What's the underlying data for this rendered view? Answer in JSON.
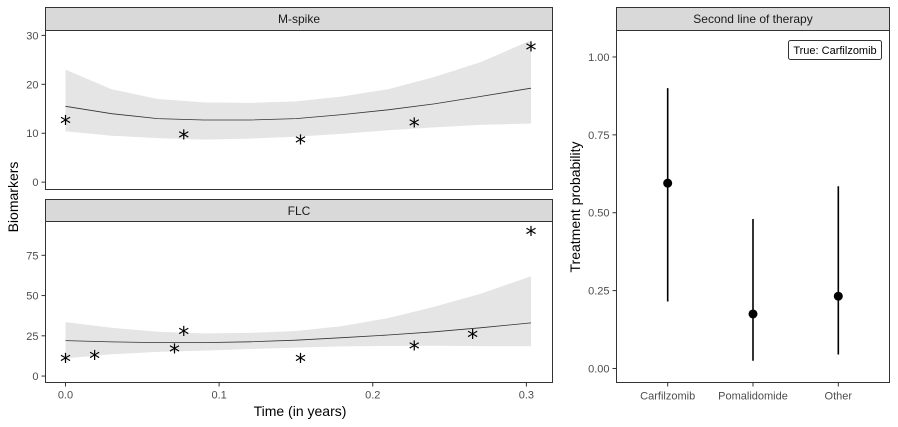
{
  "chart_data": [
    {
      "type": "line",
      "title": "M-spike",
      "xlabel": "Time (in years)",
      "ylabel": "Biomarkers",
      "xlim": [
        -0.013,
        0.317
      ],
      "ylim": [
        -1.5,
        31
      ],
      "xticks": [
        0,
        0.1,
        0.2,
        0.3
      ],
      "yticks": [
        0,
        10,
        20,
        30
      ],
      "fit": {
        "x": [
          0.0,
          0.03,
          0.06,
          0.09,
          0.12,
          0.15,
          0.18,
          0.21,
          0.24,
          0.27,
          0.303
        ],
        "y": [
          15.5,
          14.0,
          13.0,
          12.7,
          12.7,
          13.0,
          13.8,
          14.8,
          16.0,
          17.5,
          19.2
        ],
        "lower": [
          10.4,
          9.5,
          9.0,
          8.7,
          8.9,
          9.3,
          9.9,
          10.6,
          11.2,
          11.7,
          12.0
        ],
        "upper": [
          23.0,
          19.0,
          17.0,
          16.3,
          16.2,
          16.5,
          17.5,
          19.0,
          21.5,
          24.5,
          29.0
        ]
      },
      "observations": {
        "x": [
          0.0,
          0.077,
          0.153,
          0.227,
          0.303
        ],
        "y": [
          13.0,
          10.0,
          9.0,
          12.5,
          28.0
        ]
      }
    },
    {
      "type": "line",
      "title": "FLC",
      "xlabel": "Time (in years)",
      "ylabel": "Biomarkers",
      "xlim": [
        -0.013,
        0.317
      ],
      "ylim": [
        -4,
        96
      ],
      "xticks": [
        0,
        0.1,
        0.2,
        0.3
      ],
      "xtick_labels": [
        "0.0",
        "0.1",
        "0.2",
        "0.3"
      ],
      "yticks": [
        0,
        25,
        50,
        75
      ],
      "fit": {
        "x": [
          0.0,
          0.03,
          0.06,
          0.09,
          0.12,
          0.15,
          0.18,
          0.21,
          0.24,
          0.27,
          0.303
        ],
        "y": [
          22.0,
          21.2,
          20.8,
          20.8,
          21.3,
          22.3,
          23.8,
          25.5,
          27.5,
          30.0,
          33.0
        ],
        "lower": [
          11.0,
          13.5,
          15.0,
          15.8,
          16.8,
          17.7,
          18.4,
          18.7,
          18.8,
          18.6,
          18.5
        ],
        "upper": [
          33.5,
          30.0,
          27.5,
          26.5,
          26.8,
          28.0,
          31.0,
          36.0,
          43.0,
          51.0,
          62.0
        ]
      },
      "observations": {
        "x": [
          0.0,
          0.019,
          0.071,
          0.077,
          0.153,
          0.227,
          0.265,
          0.303
        ],
        "y": [
          12.0,
          14.0,
          18.0,
          29.0,
          12.0,
          20.0,
          27.0,
          91.0
        ]
      }
    },
    {
      "type": "scatter",
      "title": "Second line of therapy",
      "ylabel": "Treatment probability",
      "categories": [
        "Carfilzomib",
        "Pomalidomide",
        "Other"
      ],
      "values": [
        0.595,
        0.175,
        0.232
      ],
      "lower": [
        0.215,
        0.025,
        0.045
      ],
      "upper": [
        0.9,
        0.48,
        0.585
      ],
      "ylim": [
        -0.045,
        1.085
      ],
      "yticks": [
        0,
        0.25,
        0.5,
        0.75,
        1
      ],
      "ytick_labels": [
        "0.00",
        "0.25",
        "0.50",
        "0.75",
        "1.00"
      ],
      "legend": "True: Carfilzomib",
      "legend_position": "top-right"
    }
  ]
}
